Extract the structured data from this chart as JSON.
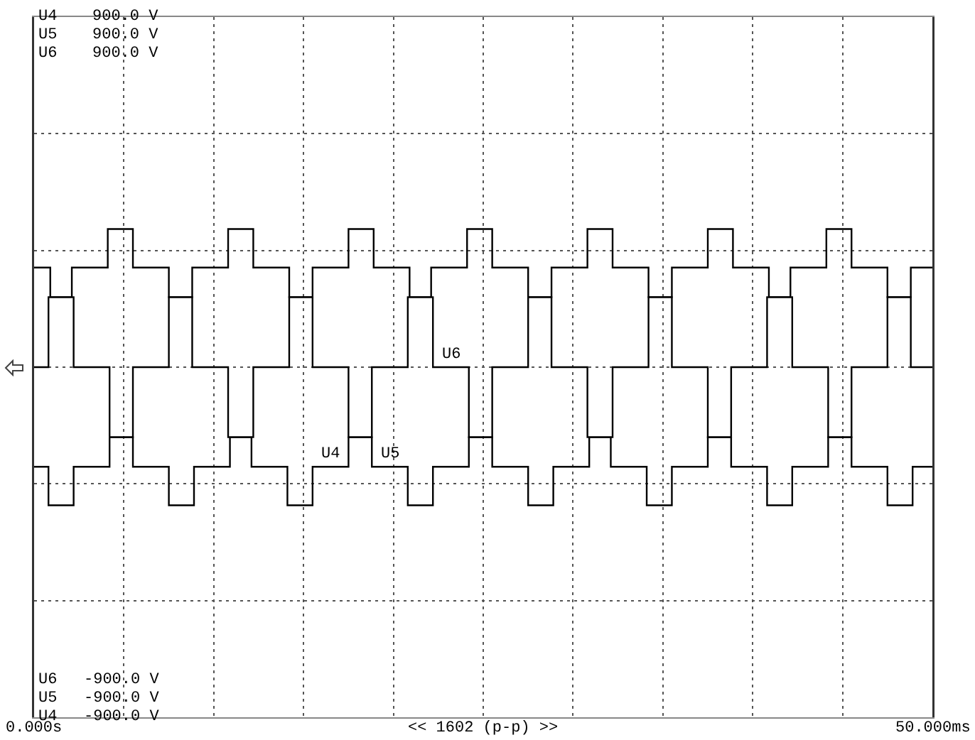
{
  "chart_data": {
    "type": "step",
    "xlim": [
      0,
      50
    ],
    "xticks": [
      {
        "value": 0,
        "label": "0.000s"
      },
      {
        "value": 5,
        "label": null
      },
      {
        "value": 10,
        "label": null
      },
      {
        "value": 15,
        "label": null
      },
      {
        "value": 20,
        "label": null
      },
      {
        "value": 25,
        "label": null
      },
      {
        "value": 30,
        "label": null
      },
      {
        "value": 35,
        "label": null
      },
      {
        "value": 40,
        "label": null
      },
      {
        "value": 45,
        "label": null
      },
      {
        "value": 50,
        "label": "50.000ms"
      }
    ],
    "ylim": [
      -900,
      900
    ],
    "yticks": [
      {
        "value": -900,
        "label": "-900.0 V"
      },
      {
        "value": -600,
        "label": null
      },
      {
        "value": -300,
        "label": null
      },
      {
        "value": 0,
        "label": null
      },
      {
        "value": 300,
        "label": null
      },
      {
        "value": 600,
        "label": null
      },
      {
        "value": 900,
        "label": "900.0 V"
      }
    ],
    "grid": true,
    "legend": false,
    "marker": "none",
    "line_style": "solid",
    "annotations": [
      "<< 1602 (p-p) >>"
    ],
    "series": [
      {
        "name": "U4",
        "color": "#000000",
        "x": [
          0,
          0.8,
          2.1,
          4.1,
          5.5,
          7.5,
          8.8,
          10.8,
          12.1,
          14.1,
          15.5,
          17.5,
          18.8,
          20.8,
          22.1,
          24.1,
          25.5,
          27.5,
          28.8,
          30.8,
          32.1,
          34.1,
          35.5,
          37.5,
          38.8,
          40.8,
          42.1,
          44.1,
          45.5,
          47.5,
          48.8,
          50
        ],
        "values": [
          0,
          180,
          256,
          355,
          256,
          180,
          0,
          -180,
          -256,
          -355,
          -256,
          -180,
          0,
          180,
          256,
          355,
          256,
          180,
          0,
          -180,
          -256,
          -355,
          -256,
          -180,
          0,
          180,
          256,
          355,
          256,
          180,
          0,
          0
        ]
      },
      {
        "name": "U5",
        "color": "#000000",
        "x": [
          0,
          0.8,
          2.2,
          4.2,
          5.5,
          7.5,
          8.8,
          10.8,
          12.2,
          14.2,
          15.5,
          17.5,
          18.8,
          20.8,
          22.2,
          24.2,
          25.5,
          27.5,
          28.8,
          30.8,
          32.2,
          34.2,
          35.5,
          37.5,
          38.8,
          40.8,
          42.2,
          44.2,
          45.5,
          47.5,
          48.8,
          50
        ],
        "values": [
          -256,
          -355,
          -256,
          -180,
          0,
          180,
          256,
          355,
          256,
          180,
          0,
          -180,
          -256,
          -355,
          -256,
          -180,
          0,
          180,
          256,
          355,
          256,
          180,
          0,
          -180,
          -256,
          -355,
          -256,
          -180,
          0,
          180,
          256,
          256
        ]
      },
      {
        "name": "U6",
        "color": "#000000",
        "x": [
          0,
          0.9,
          2.2,
          4.2,
          5.5,
          7.5,
          8.9,
          10.9,
          12.2,
          14.2,
          15.5,
          17.5,
          18.9,
          20.9,
          22.2,
          24.2,
          25.5,
          27.5,
          28.9,
          30.9,
          32.2,
          34.2,
          35.5,
          37.5,
          38.9,
          40.9,
          42.2,
          44.2,
          45.5,
          47.5,
          48.9,
          50
        ],
        "values": [
          256,
          180,
          0,
          -180,
          -256,
          -355,
          -256,
          -180,
          0,
          180,
          256,
          355,
          256,
          180,
          0,
          -180,
          -256,
          -355,
          -256,
          -180,
          0,
          180,
          256,
          355,
          256,
          180,
          0,
          -180,
          -256,
          -355,
          -256,
          -256
        ]
      }
    ]
  }
}
